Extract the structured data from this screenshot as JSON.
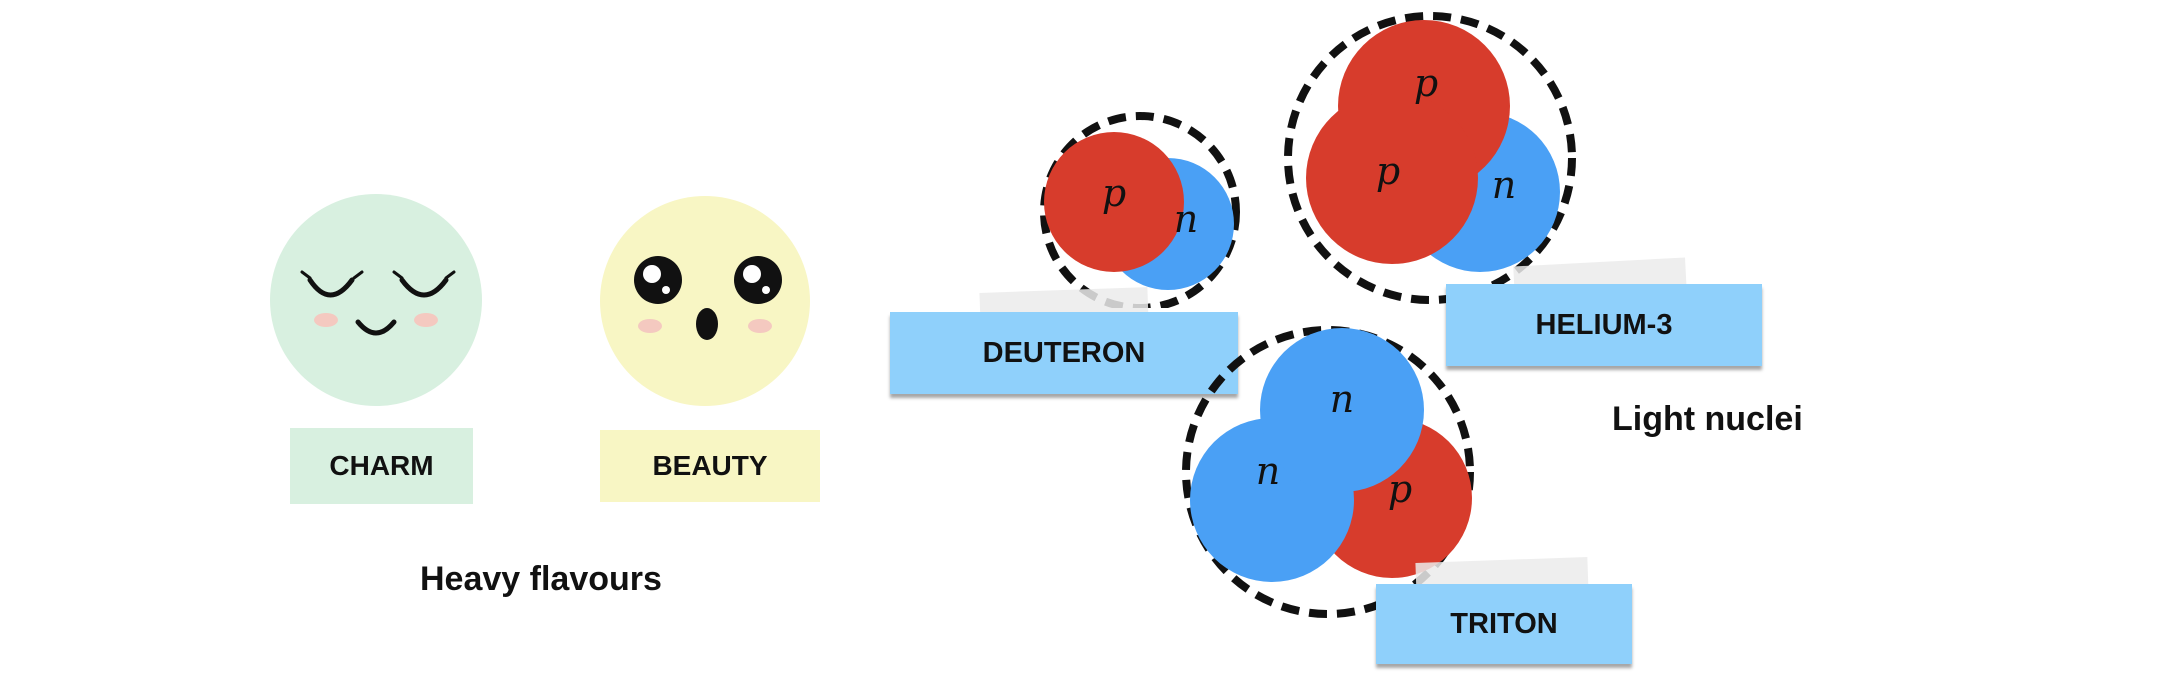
{
  "heavy_flavours": {
    "caption": "Heavy flavours",
    "charm": {
      "label": "CHARM",
      "face_color": "#d8f0e0",
      "label_bg": "#d8f0e0"
    },
    "beauty": {
      "label": "BEAUTY",
      "face_color": "#f8f6c4",
      "label_bg": "#f8f6c4"
    }
  },
  "light_nuclei": {
    "caption": "Light nuclei",
    "label_bg": "#8fd0fb",
    "proton_color": "#d73c2c",
    "neutron_color": "#4aa0f5",
    "proton_symbol": "p",
    "neutron_symbol": "n",
    "deuteron": {
      "label": "DEUTERON"
    },
    "helium3": {
      "label": "HELIUM-3"
    },
    "triton": {
      "label": "TRITON"
    }
  }
}
